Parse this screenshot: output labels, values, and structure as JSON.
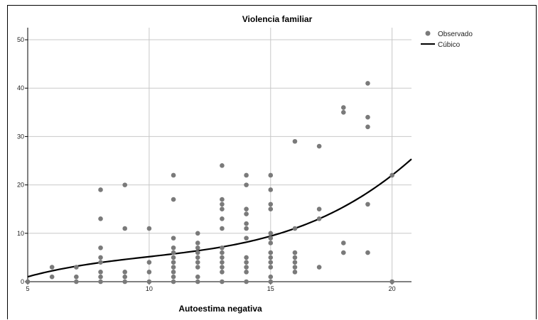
{
  "chart_data": {
    "type": "scatter",
    "title": "Violencia familiar",
    "xlabel": "Autoestima negativa",
    "ylabel": "",
    "xlim": [
      5,
      20.8
    ],
    "ylim": [
      0,
      52.5
    ],
    "xticks": [
      5,
      10,
      15,
      20
    ],
    "yticks": [
      0,
      10,
      20,
      30,
      40,
      50
    ],
    "grid": true,
    "legend_position": "right",
    "series": [
      {
        "name": "Observado",
        "kind": "points",
        "color": "#7a7a7a",
        "points": [
          [
            5,
            0
          ],
          [
            6,
            3
          ],
          [
            6,
            1
          ],
          [
            7,
            3
          ],
          [
            7,
            1
          ],
          [
            7,
            0
          ],
          [
            8,
            19
          ],
          [
            8,
            13
          ],
          [
            8,
            7
          ],
          [
            8,
            5
          ],
          [
            8,
            4
          ],
          [
            8,
            2
          ],
          [
            8,
            1
          ],
          [
            8,
            0
          ],
          [
            9,
            20
          ],
          [
            9,
            11
          ],
          [
            9,
            2
          ],
          [
            9,
            1
          ],
          [
            9,
            0
          ],
          [
            10,
            11
          ],
          [
            10,
            4
          ],
          [
            10,
            2
          ],
          [
            10,
            0
          ],
          [
            11,
            22
          ],
          [
            11,
            17
          ],
          [
            11,
            9
          ],
          [
            11,
            7
          ],
          [
            11,
            6
          ],
          [
            11,
            5
          ],
          [
            11,
            4
          ],
          [
            11,
            3
          ],
          [
            11,
            2
          ],
          [
            11,
            1
          ],
          [
            11,
            0
          ],
          [
            12,
            10
          ],
          [
            12,
            8
          ],
          [
            12,
            7
          ],
          [
            12,
            6
          ],
          [
            12,
            5
          ],
          [
            12,
            4
          ],
          [
            12,
            3
          ],
          [
            12,
            1
          ],
          [
            12,
            0
          ],
          [
            13,
            24
          ],
          [
            13,
            17
          ],
          [
            13,
            16
          ],
          [
            13,
            15
          ],
          [
            13,
            13
          ],
          [
            13,
            11
          ],
          [
            13,
            7
          ],
          [
            13,
            6
          ],
          [
            13,
            5
          ],
          [
            13,
            4
          ],
          [
            13,
            3
          ],
          [
            13,
            2
          ],
          [
            13,
            0
          ],
          [
            14,
            22
          ],
          [
            14,
            20
          ],
          [
            14,
            15
          ],
          [
            14,
            14
          ],
          [
            14,
            12
          ],
          [
            14,
            11
          ],
          [
            14,
            9
          ],
          [
            14,
            5
          ],
          [
            14,
            4
          ],
          [
            14,
            3
          ],
          [
            14,
            2
          ],
          [
            14,
            0
          ],
          [
            15,
            22
          ],
          [
            15,
            19
          ],
          [
            15,
            16
          ],
          [
            15,
            15
          ],
          [
            15,
            10
          ],
          [
            15,
            9
          ],
          [
            15,
            8
          ],
          [
            15,
            6
          ],
          [
            15,
            5
          ],
          [
            15,
            4
          ],
          [
            15,
            3
          ],
          [
            15,
            1
          ],
          [
            15,
            0
          ],
          [
            16,
            29
          ],
          [
            16,
            11
          ],
          [
            16,
            6
          ],
          [
            16,
            5
          ],
          [
            16,
            4
          ],
          [
            16,
            3
          ],
          [
            16,
            2
          ],
          [
            17,
            28
          ],
          [
            17,
            15
          ],
          [
            17,
            13
          ],
          [
            17,
            3
          ],
          [
            18,
            36
          ],
          [
            18,
            35
          ],
          [
            18,
            8
          ],
          [
            18,
            6
          ],
          [
            19,
            41
          ],
          [
            19,
            34
          ],
          [
            19,
            32
          ],
          [
            19,
            16
          ],
          [
            19,
            6
          ],
          [
            20,
            22
          ],
          [
            20,
            0
          ]
        ]
      },
      {
        "name": "Cúbico",
        "kind": "line",
        "color": "#000000",
        "coefficients": {
          "a": -11.25,
          "b": 3.815,
          "c": -0.327,
          "d": 0.01097
        }
      }
    ]
  }
}
